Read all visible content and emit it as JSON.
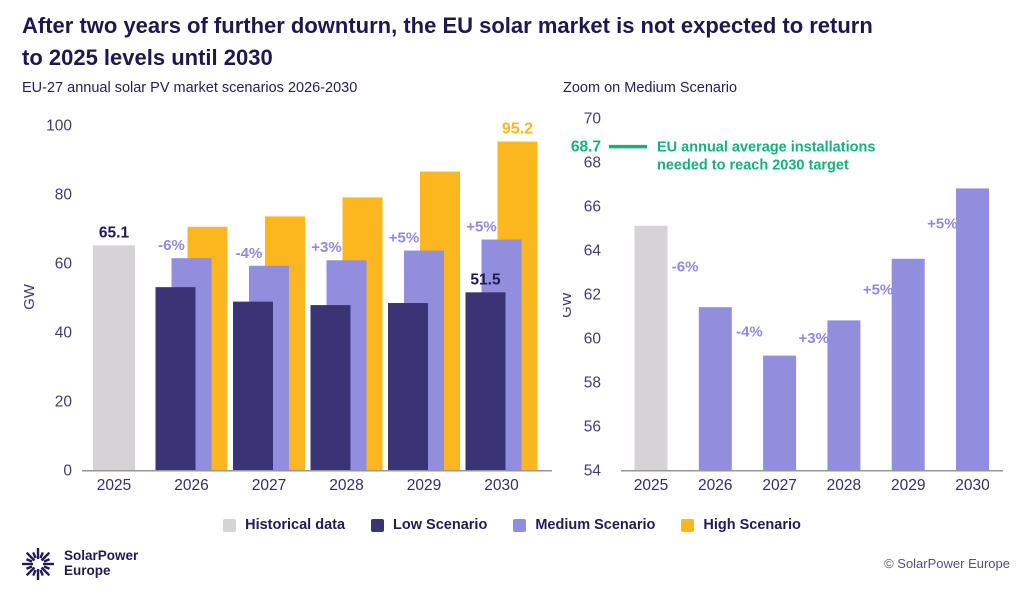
{
  "page": {
    "title_line1": "After two years of further downturn, the EU solar market is not expected to return",
    "title_line2": "to 2025 levels until 2030",
    "subtitle_left": "EU-27 annual solar PV market scenarios 2026-2030",
    "subtitle_right": "Zoom on Medium Scenario"
  },
  "colors": {
    "historical": "#d5d3d5",
    "low": "#3a3474",
    "medium": "#928ede",
    "high": "#fcb61e",
    "green": "#14b278",
    "navy_text": "#211a52",
    "axis_line": "#969696"
  },
  "chart_data": [
    {
      "type": "bar",
      "title": "EU-27 annual solar PV market scenarios 2026-2030",
      "categories": [
        "2025",
        "2026",
        "2027",
        "2028",
        "2029",
        "2030"
      ],
      "series": [
        {
          "name": "Historical data",
          "key": "historical",
          "values": [
            65.1,
            null,
            null,
            null,
            null,
            null
          ]
        },
        {
          "name": "Low Scenario",
          "key": "low",
          "values": [
            null,
            53.0,
            48.8,
            47.8,
            48.4,
            51.5
          ]
        },
        {
          "name": "Medium Scenario",
          "key": "medium",
          "values": [
            null,
            61.4,
            59.2,
            60.8,
            63.6,
            66.8
          ]
        },
        {
          "name": "High Scenario",
          "key": "high",
          "values": [
            null,
            70.5,
            73.5,
            79.0,
            86.5,
            95.2
          ]
        }
      ],
      "pct_labels": [
        "-6%",
        "-4%",
        "+3%",
        "+5%",
        "+5%"
      ],
      "value_labels": [
        {
          "year_index": 0,
          "series": "historical",
          "label": "65.1"
        },
        {
          "year_index": 5,
          "series": "low",
          "label": "51.5"
        },
        {
          "year_index": 5,
          "series": "high",
          "label": "95.2"
        }
      ],
      "xlabel": "",
      "ylabel": "GW",
      "ylim": [
        0,
        100
      ],
      "yticks": [
        0,
        20,
        40,
        60,
        80,
        100
      ],
      "grid": false,
      "legend_position": "bottom"
    },
    {
      "type": "bar",
      "title": "Zoom on Medium Scenario",
      "categories": [
        "2025",
        "2026",
        "2027",
        "2028",
        "2029",
        "2030"
      ],
      "series": [
        {
          "name": "Historical data",
          "key": "historical",
          "values": [
            65.1,
            null,
            null,
            null,
            null,
            null
          ]
        },
        {
          "name": "Medium Scenario",
          "key": "medium",
          "values": [
            null,
            61.4,
            59.2,
            60.8,
            63.6,
            66.8
          ]
        }
      ],
      "pct_labels": [
        "-6%",
        "-4%",
        "+3%",
        "+5%",
        "+5%"
      ],
      "annotation": {
        "value_label": "68.7",
        "y": 68.7,
        "text_line1": "EU annual average installations",
        "text_line2": "needed to reach 2030 target"
      },
      "xlabel": "",
      "ylabel": "GW",
      "ylim": [
        54,
        70
      ],
      "yticks": [
        54,
        56,
        58,
        60,
        62,
        64,
        66,
        68,
        70
      ],
      "grid": false,
      "legend_position": "none"
    }
  ],
  "legend": {
    "items": [
      {
        "label": "Historical data",
        "key": "historical"
      },
      {
        "label": "Low Scenario",
        "key": "low"
      },
      {
        "label": "Medium Scenario",
        "key": "medium"
      },
      {
        "label": "High Scenario",
        "key": "high"
      }
    ]
  },
  "footer": {
    "logo_line1": "SolarPower",
    "logo_line2": "Europe",
    "copyright": "© SolarPower Europe"
  }
}
